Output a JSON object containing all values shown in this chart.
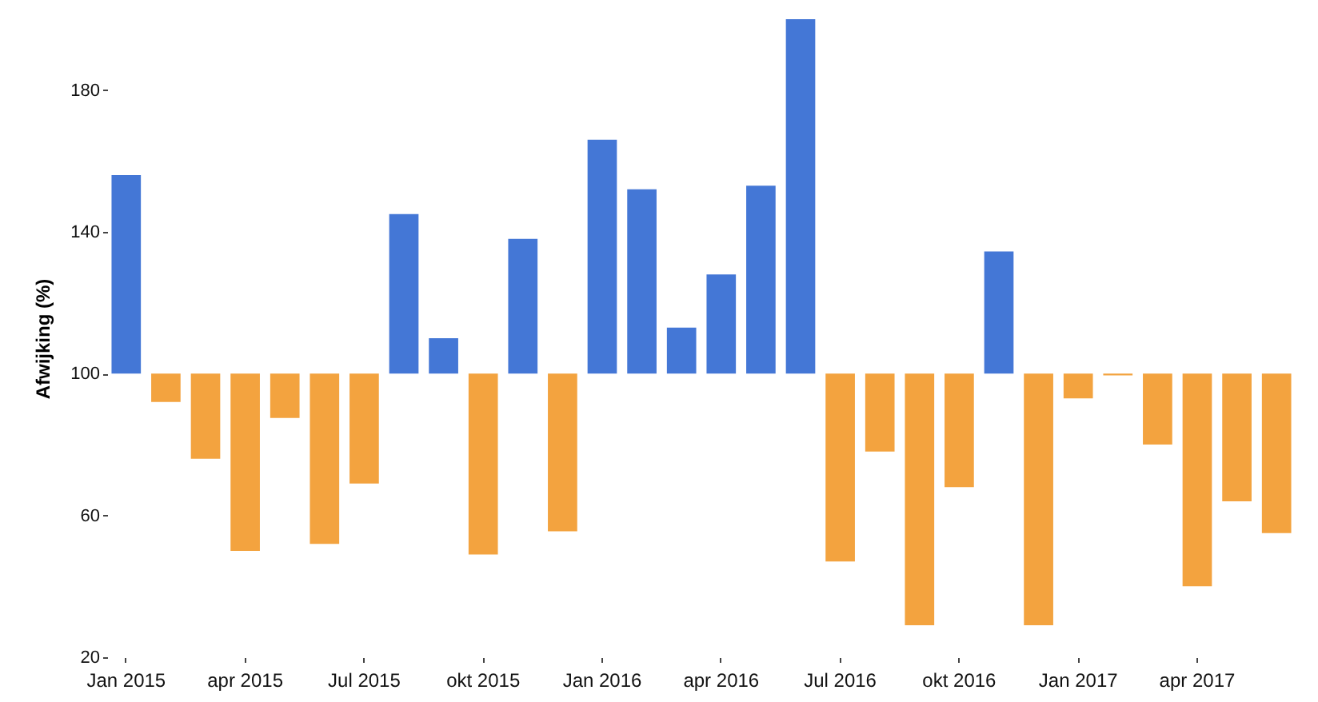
{
  "chart_data": {
    "type": "bar",
    "ylabel": "Afwijking (%)",
    "categories": [
      "Jan 2015",
      null,
      null,
      "apr 2015",
      null,
      null,
      "Jul 2015",
      null,
      null,
      "okt 2015",
      null,
      null,
      "Jan 2016",
      null,
      null,
      "apr 2016",
      null,
      null,
      "Jul 2016",
      null,
      null,
      "okt 2016",
      null,
      null,
      "Jan 2017",
      null,
      null,
      "apr 2017",
      null,
      null
    ],
    "base": [
      100,
      100,
      100,
      100,
      100,
      100,
      100,
      100,
      100,
      100,
      100,
      100,
      100,
      100,
      100,
      100,
      100,
      100,
      100,
      100,
      100,
      100,
      100,
      100,
      100,
      100,
      100,
      100,
      100,
      100
    ],
    "values": [
      56,
      -8,
      -24,
      -50,
      -12.5,
      -48,
      -31,
      45,
      10,
      -51,
      38,
      -44.5,
      66,
      52,
      13,
      28,
      53,
      100,
      -53,
      -22,
      -71,
      -32,
      34.5,
      -71,
      -7,
      -0.5,
      -20,
      -60,
      -36,
      -45
    ],
    "colors": [
      "#4477d6",
      "#f3a33f",
      "#f3a33f",
      "#f3a33f",
      "#f3a33f",
      "#f3a33f",
      "#f3a33f",
      "#4477d6",
      "#4477d6",
      "#f3a33f",
      "#4477d6",
      "#f3a33f",
      "#4477d6",
      "#4477d6",
      "#4477d6",
      "#4477d6",
      "#4477d6",
      "#4477d6",
      "#f3a33f",
      "#f3a33f",
      "#f3a33f",
      "#f3a33f",
      "#4477d6",
      "#f3a33f",
      "#f3a33f",
      "#f3a33f",
      "#f3a33f",
      "#f3a33f",
      "#f3a33f",
      "#f3a33f"
    ],
    "ylim": [
      20,
      200
    ],
    "yticks": [
      20,
      60,
      100,
      140,
      180
    ],
    "grid": false
  }
}
